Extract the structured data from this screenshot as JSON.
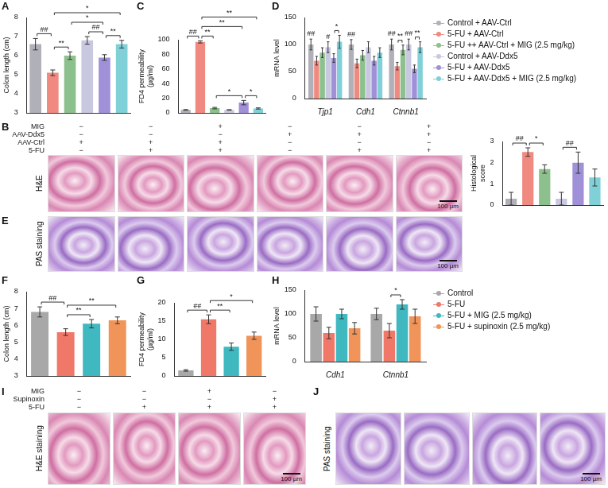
{
  "chart_data": [
    {
      "panel": "A",
      "type": "bar",
      "categories": [
        null,
        null,
        null,
        null,
        null,
        null
      ],
      "values": [
        6.6,
        5.1,
        6.0,
        6.8,
        5.9,
        6.6
      ],
      "errors": [
        0.3,
        0.15,
        0.2,
        0.2,
        0.15,
        0.2
      ],
      "colors": [
        "#b0b0b8",
        "#f08a80",
        "#8cc08c",
        "#c8c8e0",
        "#a090d8",
        "#80d0d8"
      ],
      "y_label": "Colon length (cm)",
      "ylim": [
        3,
        8
      ],
      "yticks": [
        3,
        4,
        5,
        6,
        7,
        8
      ],
      "grid": false,
      "tick_labels": "y",
      "brackets": [
        {
          "from": 0,
          "to": 1,
          "label": "##"
        },
        {
          "from": 1,
          "to": 2,
          "label": "**"
        },
        {
          "from": 2,
          "to": 4,
          "label": "*"
        },
        {
          "from": 1,
          "to": 5,
          "label": "*"
        },
        {
          "from": 3,
          "to": 4,
          "label": "##"
        },
        {
          "from": 4,
          "to": 5,
          "label": "**"
        }
      ]
    },
    {
      "panel": "C",
      "type": "bar",
      "categories": [
        null,
        null,
        null,
        null,
        null,
        null
      ],
      "values": [
        4,
        97,
        6.5,
        4,
        14,
        6
      ],
      "errors": [
        0.5,
        1.5,
        1,
        0.4,
        3,
        0.8
      ],
      "colors": [
        "#b0b0b8",
        "#f08a80",
        "#8cc08c",
        "#c8c8e0",
        "#a090d8",
        "#80d0d8"
      ],
      "y_label": "FD4 permeability (µg/ml)",
      "ylim": [
        0,
        100
      ],
      "yticks": [
        0,
        20,
        40,
        60,
        80,
        100
      ],
      "grid": false,
      "tick_labels": "y",
      "brackets": [
        {
          "from": 0,
          "to": 1,
          "label": "##"
        },
        {
          "from": 1,
          "to": 2,
          "label": "**"
        },
        {
          "from": 1,
          "to": 4,
          "label": "**"
        },
        {
          "from": 1,
          "to": 5,
          "label": "**"
        },
        {
          "from": 2,
          "to": 4,
          "label": "*"
        },
        {
          "from": 4,
          "to": 5,
          "label": "*"
        }
      ]
    },
    {
      "panel": "D",
      "type": "bar",
      "categories": [
        "Tjp1",
        "Cdh1",
        "Ctnnb1"
      ],
      "series": [
        {
          "name": "Control + AAV-Ctrl",
          "color": "#b0b0b8",
          "values": [
            100,
            100,
            100
          ],
          "errors": [
            10,
            9,
            10
          ]
        },
        {
          "name": "5-FU + AAV-Ctrl",
          "color": "#f08a80",
          "values": [
            70,
            65,
            60
          ],
          "errors": [
            8,
            8,
            7
          ]
        },
        {
          "name": "5-FU ++ AAV-Ctrl + MIG (2.5 mg/kg)",
          "color": "#8cc08c",
          "values": [
            85,
            80,
            90
          ],
          "errors": [
            9,
            9,
            9
          ]
        },
        {
          "name": "Control + AAV-Ddx5",
          "color": "#c8c8e0",
          "values": [
            95,
            95,
            100
          ],
          "errors": [
            10,
            10,
            10
          ]
        },
        {
          "name": "5-FU + AAV-Ddx5",
          "color": "#a090d8",
          "values": [
            75,
            70,
            55
          ],
          "errors": [
            8,
            8,
            7
          ]
        },
        {
          "name": "5-FU + AAV-Ddx5 + MIG (2.5 mg/kg)",
          "color": "#80d0d8",
          "values": [
            105,
            85,
            95
          ],
          "errors": [
            12,
            9,
            10
          ]
        }
      ],
      "y_label": "mRNA level",
      "ylim": [
        0,
        150
      ],
      "yticks": [
        0,
        50,
        100,
        150
      ],
      "grid": false,
      "legend": "right",
      "marks": [
        {
          "category": "Tjp1",
          "series": 0,
          "label": "##"
        },
        {
          "category": "Tjp1",
          "series": 3,
          "label": "#"
        },
        {
          "category": "Cdh1",
          "series": 0,
          "label": "##"
        },
        {
          "category": "Ctnnb1",
          "series": 0,
          "label": "##"
        },
        {
          "category": "Ctnnb1",
          "series": 3,
          "label": "##"
        }
      ],
      "brackets": [
        {
          "category": "Tjp1",
          "from": 4,
          "to": 5,
          "label": "*"
        },
        {
          "category": "Ctnnb1",
          "from": 1,
          "to": 2,
          "label": "**"
        },
        {
          "category": "Ctnnb1",
          "from": 4,
          "to": 5,
          "label": "**"
        }
      ]
    },
    {
      "type": "bar",
      "categories": [
        null,
        null,
        null,
        null,
        null,
        null
      ],
      "values": [
        0.3,
        2.5,
        1.7,
        0.3,
        2.0,
        1.3
      ],
      "errors": [
        0.3,
        0.2,
        0.2,
        0.3,
        0.5,
        0.4
      ],
      "colors": [
        "#b0b0b8",
        "#f08a80",
        "#8cc08c",
        "#c8c8e0",
        "#a090d8",
        "#80d0d8"
      ],
      "y_label": "Histological score",
      "ylim": [
        0,
        3
      ],
      "yticks": [
        0,
        1,
        2,
        3
      ],
      "grid": false,
      "tick_labels": "y",
      "brackets": [
        {
          "from": 0,
          "to": 1,
          "label": "##"
        },
        {
          "from": 1,
          "to": 2,
          "label": "*"
        },
        {
          "from": 3,
          "to": 4,
          "label": "##"
        }
      ]
    },
    {
      "panel": "F",
      "type": "bar",
      "categories": [
        null,
        null,
        null,
        null
      ],
      "values": [
        6.8,
        5.6,
        6.1,
        6.3
      ],
      "errors": [
        0.3,
        0.2,
        0.25,
        0.2
      ],
      "colors": [
        "#a8a8a8",
        "#f07868",
        "#40b8c0",
        "#f0945a"
      ],
      "y_label": "Colon length (cm)",
      "ylim": [
        3,
        8
      ],
      "yticks": [
        3,
        4,
        5,
        6,
        7,
        8
      ],
      "grid": false,
      "tick_labels": "y",
      "brackets": [
        {
          "from": 0,
          "to": 1,
          "label": "##"
        },
        {
          "from": 1,
          "to": 2,
          "label": "**"
        },
        {
          "from": 1,
          "to": 3,
          "label": "**"
        }
      ]
    },
    {
      "panel": "G",
      "type": "bar",
      "categories": [
        null,
        null,
        null,
        null
      ],
      "values": [
        1.5,
        15.5,
        8,
        11
      ],
      "errors": [
        0.2,
        1.2,
        1,
        1
      ],
      "colors": [
        "#a8a8a8",
        "#f07868",
        "#40b8c0",
        "#f0945a"
      ],
      "y_label": "FD4 permeability (µg/ml)",
      "ylim": [
        0,
        20
      ],
      "yticks": [
        0,
        5,
        10,
        15,
        20
      ],
      "grid": false,
      "tick_labels": "y",
      "brackets": [
        {
          "from": 0,
          "to": 1,
          "label": "##"
        },
        {
          "from": 1,
          "to": 2,
          "label": "**"
        },
        {
          "from": 1,
          "to": 3,
          "label": "*"
        }
      ]
    },
    {
      "panel": "H",
      "type": "bar",
      "categories": [
        "Cdh1",
        "Ctnnb1"
      ],
      "series": [
        {
          "name": "Control",
          "color": "#a8a8a8",
          "values": [
            100,
            100
          ],
          "errors": [
            15,
            12
          ]
        },
        {
          "name": "5-FU",
          "color": "#f07868",
          "values": [
            60,
            65
          ],
          "errors": [
            12,
            15
          ]
        },
        {
          "name": "5-FU + MIG (2.5 mg/kg)",
          "color": "#40b8c0",
          "values": [
            100,
            120
          ],
          "errors": [
            10,
            10
          ]
        },
        {
          "name": "5-FU + supinoxin (2.5 mg/kg)",
          "color": "#f0945a",
          "values": [
            70,
            95
          ],
          "errors": [
            12,
            15
          ]
        }
      ],
      "y_label": "mRNA level",
      "ylim": [
        0,
        150
      ],
      "yticks": [
        0,
        50,
        100,
        150
      ],
      "grid": false,
      "legend": "right",
      "brackets": [
        {
          "category": "Ctnnb1",
          "from": 1,
          "to": 2,
          "label": "*"
        }
      ]
    }
  ],
  "image_panels": [
    {
      "panel": "B",
      "conditions": [
        {
          "name": "MIG",
          "values": [
            "−",
            "−",
            "+",
            "−",
            "−",
            "+"
          ]
        },
        {
          "name": "AAV-Ddx5",
          "values": [
            "−",
            "−",
            "−",
            "+",
            "+",
            "+"
          ]
        },
        {
          "name": "AAV-Ctrl",
          "values": [
            "+",
            "+",
            "+",
            "−",
            "−",
            "−"
          ]
        },
        {
          "name": "5-FU",
          "values": [
            "−",
            "+",
            "+",
            "−",
            "+",
            "+"
          ]
        }
      ],
      "stain": "H&E",
      "images": 6,
      "scale_bar": "100 µm"
    },
    {
      "panel": "E",
      "stain": "PAS staining",
      "images": 6,
      "scale_bar": "100 µm"
    },
    {
      "panel": "I",
      "conditions": [
        {
          "name": "MIG",
          "values": [
            "−",
            "−",
            "+",
            "−"
          ]
        },
        {
          "name": "Supinoxin",
          "values": [
            "−",
            "−",
            "−",
            "+"
          ]
        },
        {
          "name": "5-FU",
          "values": [
            "−",
            "+",
            "+",
            "+"
          ]
        }
      ],
      "stain": "H&E staining",
      "images": 4,
      "scale_bar": "100 µm"
    },
    {
      "panel": "J",
      "stain": "PAS staining",
      "images": 4,
      "scale_bar": "100 µm"
    }
  ]
}
